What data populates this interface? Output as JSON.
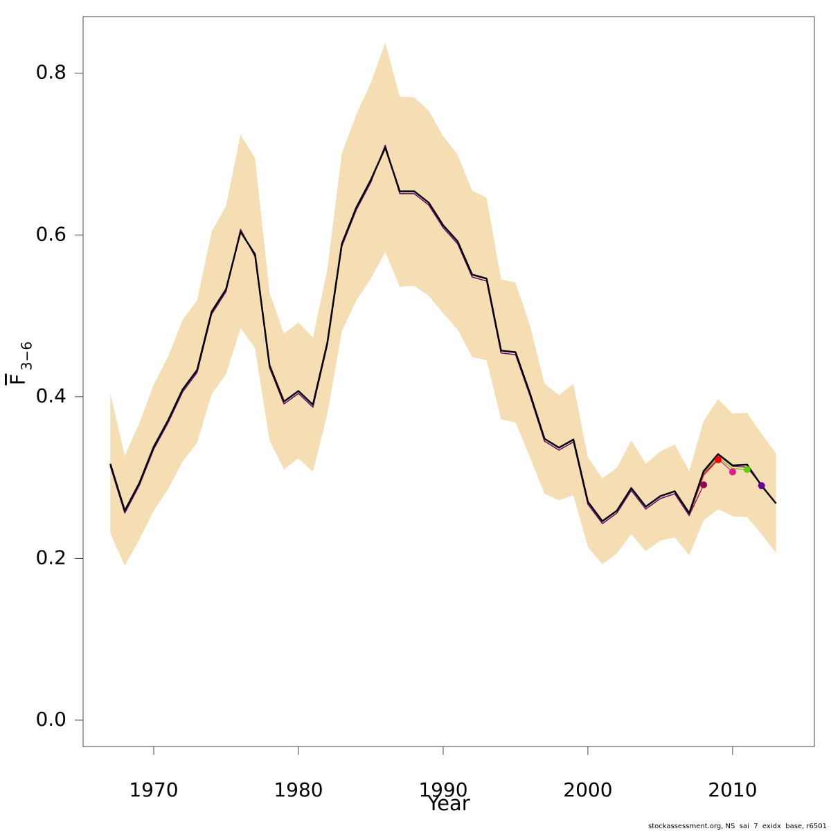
{
  "chart_data": {
    "type": "line",
    "xlabel": "Year",
    "ylabel": "F",
    "ylabel_sub": "3−6",
    "footer": "stockassessment.org, NS  sai  7  exidx  base, r6501",
    "x": [
      1967,
      1968,
      1969,
      1970,
      1971,
      1972,
      1973,
      1974,
      1975,
      1976,
      1977,
      1978,
      1979,
      1980,
      1981,
      1982,
      1983,
      1984,
      1985,
      1986,
      1987,
      1988,
      1989,
      1990,
      1991,
      1992,
      1993,
      1994,
      1995,
      1996,
      1997,
      1998,
      1999,
      2000,
      2001,
      2002,
      2003,
      2004,
      2005,
      2006,
      2007,
      2008,
      2009,
      2010,
      2011,
      2012,
      2013
    ],
    "xlim": [
      1965.12,
      2015.65
    ],
    "xticks": [
      1970,
      1980,
      1990,
      2000,
      2010
    ],
    "ylim": [
      -0.0326,
      0.87
    ],
    "yticks": [
      {
        "value": 0,
        "label": "0.0"
      },
      0.2,
      0.4,
      0.6,
      0.8
    ],
    "band": {
      "color": "#f5deb3",
      "upper": [
        0.404,
        0.327,
        0.367,
        0.415,
        0.45,
        0.495,
        0.519,
        0.604,
        0.636,
        0.724,
        0.695,
        0.529,
        0.478,
        0.492,
        0.473,
        0.558,
        0.701,
        0.749,
        0.788,
        0.838,
        0.771,
        0.77,
        0.754,
        0.722,
        0.699,
        0.655,
        0.646,
        0.545,
        0.541,
        0.488,
        0.416,
        0.402,
        0.416,
        0.325,
        0.299,
        0.312,
        0.346,
        0.317,
        0.332,
        0.341,
        0.308,
        0.37,
        0.397,
        0.379,
        0.38,
        0.354,
        0.33
      ],
      "lower": [
        0.231,
        0.191,
        0.223,
        0.259,
        0.286,
        0.32,
        0.343,
        0.403,
        0.428,
        0.485,
        0.46,
        0.346,
        0.31,
        0.324,
        0.307,
        0.379,
        0.481,
        0.519,
        0.546,
        0.579,
        0.536,
        0.537,
        0.525,
        0.503,
        0.483,
        0.449,
        0.445,
        0.372,
        0.368,
        0.325,
        0.28,
        0.272,
        0.278,
        0.214,
        0.193,
        0.206,
        0.23,
        0.209,
        0.222,
        0.226,
        0.204,
        0.247,
        0.261,
        0.252,
        0.251,
        0.23,
        0.207
      ]
    },
    "series": [
      {
        "color": "#8b0a50",
        "values": [
          0.314,
          0.256,
          0.29,
          0.335,
          0.368,
          0.406,
          0.43,
          0.502,
          0.53,
          0.607,
          0.573,
          0.436,
          0.391,
          0.404,
          0.387,
          0.464,
          0.586,
          0.631,
          0.665,
          0.711,
          0.651,
          0.651,
          0.637,
          0.609,
          0.589,
          0.548,
          0.543,
          0.454,
          0.452,
          0.401,
          0.345,
          0.334,
          0.344,
          0.267,
          0.243,
          0.256,
          0.284,
          0.261,
          0.274,
          0.28,
          0.253,
          0.291,
          null,
          null,
          null,
          null,
          null
        ]
      },
      {
        "color": "#ff0000",
        "values": [
          0.314,
          0.256,
          0.29,
          0.335,
          0.368,
          0.406,
          0.43,
          0.502,
          0.53,
          0.607,
          0.573,
          0.436,
          0.391,
          0.404,
          0.387,
          0.464,
          0.586,
          0.631,
          0.665,
          0.711,
          0.651,
          0.651,
          0.637,
          0.609,
          0.589,
          0.548,
          0.543,
          0.454,
          0.452,
          0.401,
          0.345,
          0.334,
          0.344,
          0.267,
          0.243,
          0.256,
          0.284,
          0.261,
          0.274,
          0.28,
          0.253,
          0.303,
          0.322,
          null,
          null,
          null,
          null
        ]
      },
      {
        "color": "#e6198c",
        "values": [
          0.314,
          0.256,
          0.29,
          0.335,
          0.368,
          0.406,
          0.43,
          0.502,
          0.53,
          0.607,
          0.573,
          0.436,
          0.391,
          0.404,
          0.387,
          0.464,
          0.586,
          0.631,
          0.665,
          0.711,
          0.651,
          0.651,
          0.637,
          0.609,
          0.589,
          0.548,
          0.543,
          0.454,
          0.452,
          0.401,
          0.345,
          0.334,
          0.344,
          0.267,
          0.243,
          0.256,
          0.284,
          0.261,
          0.274,
          0.28,
          0.253,
          0.305,
          0.323,
          0.307,
          null,
          null,
          null
        ]
      },
      {
        "color": "#66cc00",
        "values": [
          0.314,
          0.256,
          0.29,
          0.335,
          0.368,
          0.406,
          0.43,
          0.502,
          0.53,
          0.607,
          0.573,
          0.436,
          0.391,
          0.404,
          0.387,
          0.464,
          0.586,
          0.631,
          0.665,
          0.711,
          0.651,
          0.651,
          0.637,
          0.609,
          0.589,
          0.548,
          0.543,
          0.454,
          0.452,
          0.401,
          0.345,
          0.334,
          0.344,
          0.267,
          0.243,
          0.256,
          0.284,
          0.261,
          0.274,
          0.28,
          0.253,
          0.306,
          0.325,
          0.311,
          0.31,
          null,
          null
        ]
      },
      {
        "color": "#660099",
        "values": [
          0.314,
          0.256,
          0.29,
          0.335,
          0.368,
          0.406,
          0.43,
          0.502,
          0.53,
          0.607,
          0.573,
          0.436,
          0.391,
          0.404,
          0.387,
          0.464,
          0.586,
          0.631,
          0.665,
          0.711,
          0.651,
          0.651,
          0.637,
          0.609,
          0.589,
          0.548,
          0.543,
          0.454,
          0.452,
          0.401,
          0.345,
          0.334,
          0.344,
          0.267,
          0.243,
          0.256,
          0.284,
          0.261,
          0.274,
          0.28,
          0.253,
          0.307,
          0.328,
          0.314,
          0.313,
          0.29,
          null
        ]
      },
      {
        "color": "#000000",
        "values": [
          0.317,
          0.259,
          0.293,
          0.338,
          0.371,
          0.409,
          0.433,
          0.505,
          0.533,
          0.604,
          0.576,
          0.439,
          0.394,
          0.407,
          0.39,
          0.467,
          0.589,
          0.634,
          0.668,
          0.708,
          0.654,
          0.654,
          0.64,
          0.612,
          0.592,
          0.551,
          0.546,
          0.457,
          0.455,
          0.404,
          0.348,
          0.337,
          0.347,
          0.27,
          0.246,
          0.259,
          0.287,
          0.264,
          0.277,
          0.283,
          0.256,
          0.308,
          0.329,
          0.315,
          0.316,
          0.29,
          0.268
        ]
      }
    ]
  }
}
